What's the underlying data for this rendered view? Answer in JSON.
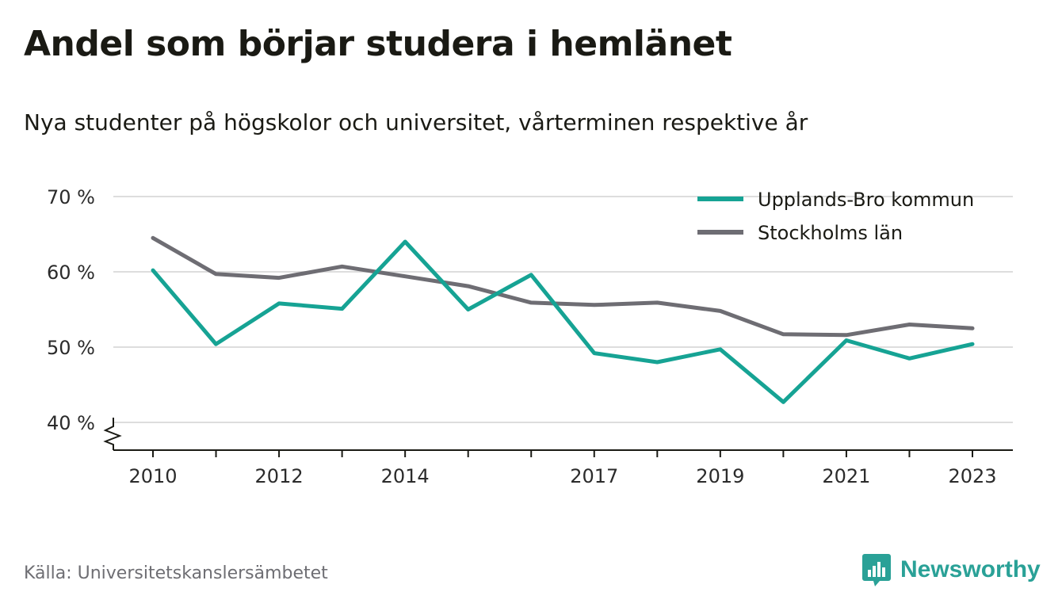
{
  "header": {
    "title": "Andel som börjar studera i hemlänet",
    "subtitle": "Nya studenter på högskolor och universitet, vårterminen respektive år"
  },
  "footer": {
    "source": "Källa: Universitetskanslersämbetet",
    "brand": "Newsworthy"
  },
  "colors": {
    "series_1": "#16a394",
    "series_2": "#6e6d73",
    "grid": "#dddddd",
    "axis": "#1a1a14",
    "brand": "#2aa197"
  },
  "chart_data": {
    "type": "line",
    "x": [
      2010,
      2011,
      2012,
      2013,
      2014,
      2015,
      2016,
      2017,
      2018,
      2019,
      2020,
      2021,
      2022,
      2023
    ],
    "x_tick_labels": [
      "2010",
      "2012",
      "2014",
      "2017",
      "2019",
      "2021",
      "2023"
    ],
    "y_ticks": [
      40,
      50,
      60,
      70
    ],
    "y_tick_labels": [
      "40 %",
      "50 %",
      "60 %",
      "70 %"
    ],
    "ylim": [
      36.3,
      70
    ],
    "y_axis_break": true,
    "grid": true,
    "legend_position": "top-right",
    "series": [
      {
        "name": "Upplands-Bro kommun",
        "color": "#16a394",
        "values": [
          60.2,
          50.4,
          55.8,
          55.1,
          64.0,
          55.0,
          59.6,
          49.2,
          48.0,
          49.7,
          42.7,
          50.9,
          48.5,
          50.4
        ]
      },
      {
        "name": "Stockholms län",
        "color": "#6e6d73",
        "values": [
          64.5,
          59.7,
          59.2,
          60.7,
          59.4,
          58.1,
          55.9,
          55.6,
          55.9,
          54.8,
          51.7,
          51.6,
          53.0,
          52.5
        ]
      }
    ]
  }
}
